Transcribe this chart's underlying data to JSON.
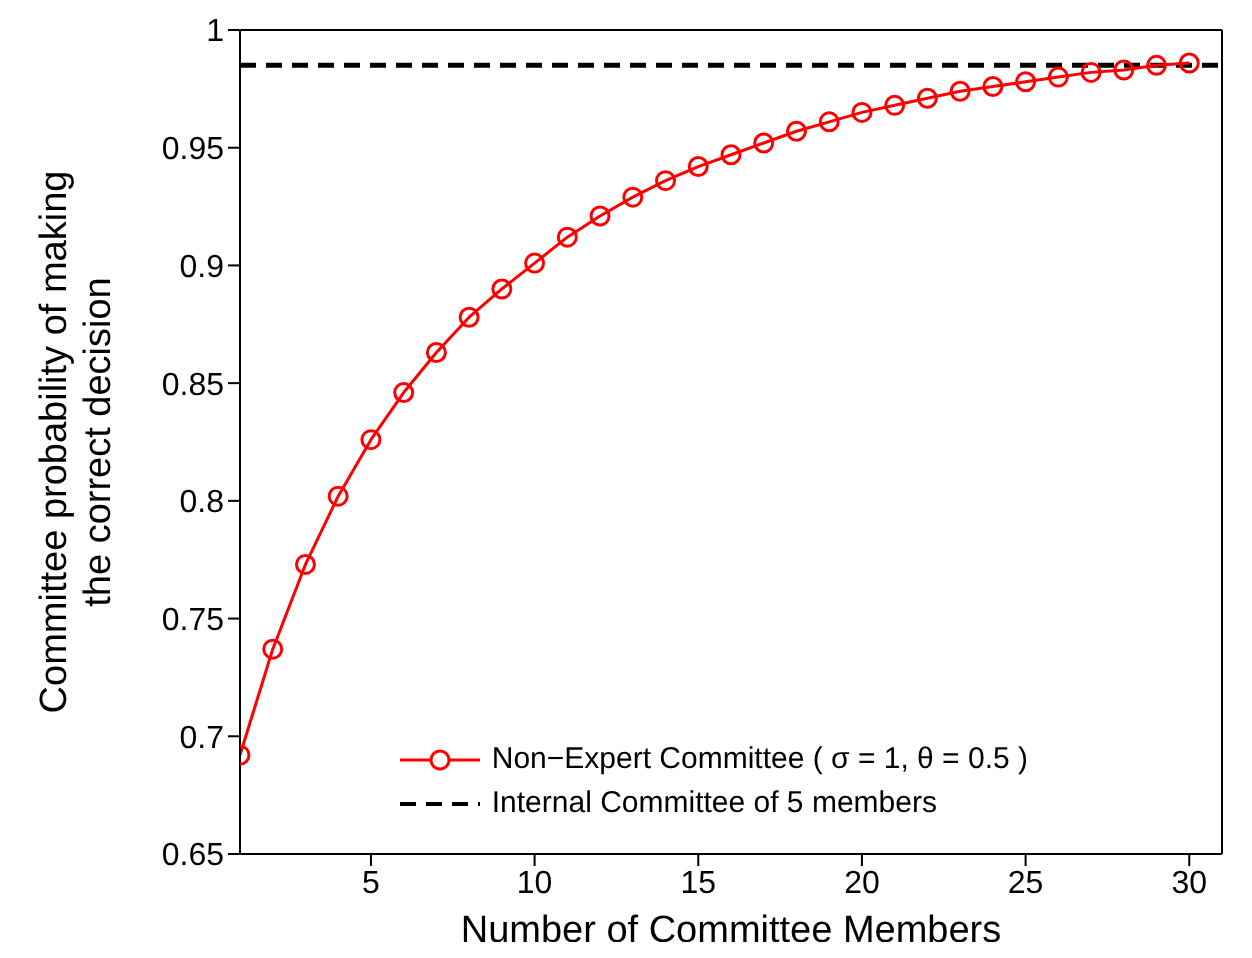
{
  "chart_data": {
    "type": "line",
    "xlabel": "Number of Committee Members",
    "ylabel": "Committee probability of making the correct decision",
    "x": [
      1,
      2,
      3,
      4,
      5,
      6,
      7,
      8,
      9,
      10,
      11,
      12,
      13,
      14,
      15,
      16,
      17,
      18,
      19,
      20,
      21,
      22,
      23,
      24,
      25,
      26,
      27,
      28,
      29,
      30
    ],
    "series": [
      {
        "name": "Non−Expert Committee ( σ = 1, θ = 0.5 )",
        "color": "#ff0000",
        "values": [
          0.692,
          0.737,
          0.773,
          0.802,
          0.826,
          0.846,
          0.863,
          0.878,
          0.89,
          0.901,
          0.912,
          0.921,
          0.929,
          0.936,
          0.942,
          0.947,
          0.952,
          0.957,
          0.961,
          0.965,
          0.968,
          0.971,
          0.974,
          0.976,
          0.978,
          0.98,
          0.982,
          0.983,
          0.985,
          0.986
        ]
      }
    ],
    "ref_lines": [
      {
        "axis": "y",
        "value": 0.985,
        "label": "Internal Committee of 5 members",
        "color": "#000000",
        "line_style": "dashed"
      }
    ],
    "xlim": [
      1,
      31
    ],
    "xticks": [
      5,
      10,
      15,
      20,
      25,
      30
    ],
    "ylim": [
      0.65,
      1
    ],
    "yticks": [
      {
        "value": 0.65,
        "label": "0.65"
      },
      {
        "value": 0.7,
        "label": "0.7"
      },
      {
        "value": 0.75,
        "label": "0.75"
      },
      {
        "value": 0.8,
        "label": "0.8"
      },
      {
        "value": 0.85,
        "label": "0.85"
      },
      {
        "value": 0.9,
        "label": "0.9"
      },
      {
        "value": 0.95,
        "label": "0.95"
      },
      {
        "value": 1,
        "label": "1"
      }
    ],
    "marker": "circle",
    "line_style": "solid",
    "grid": false,
    "legend": "bottom right"
  }
}
